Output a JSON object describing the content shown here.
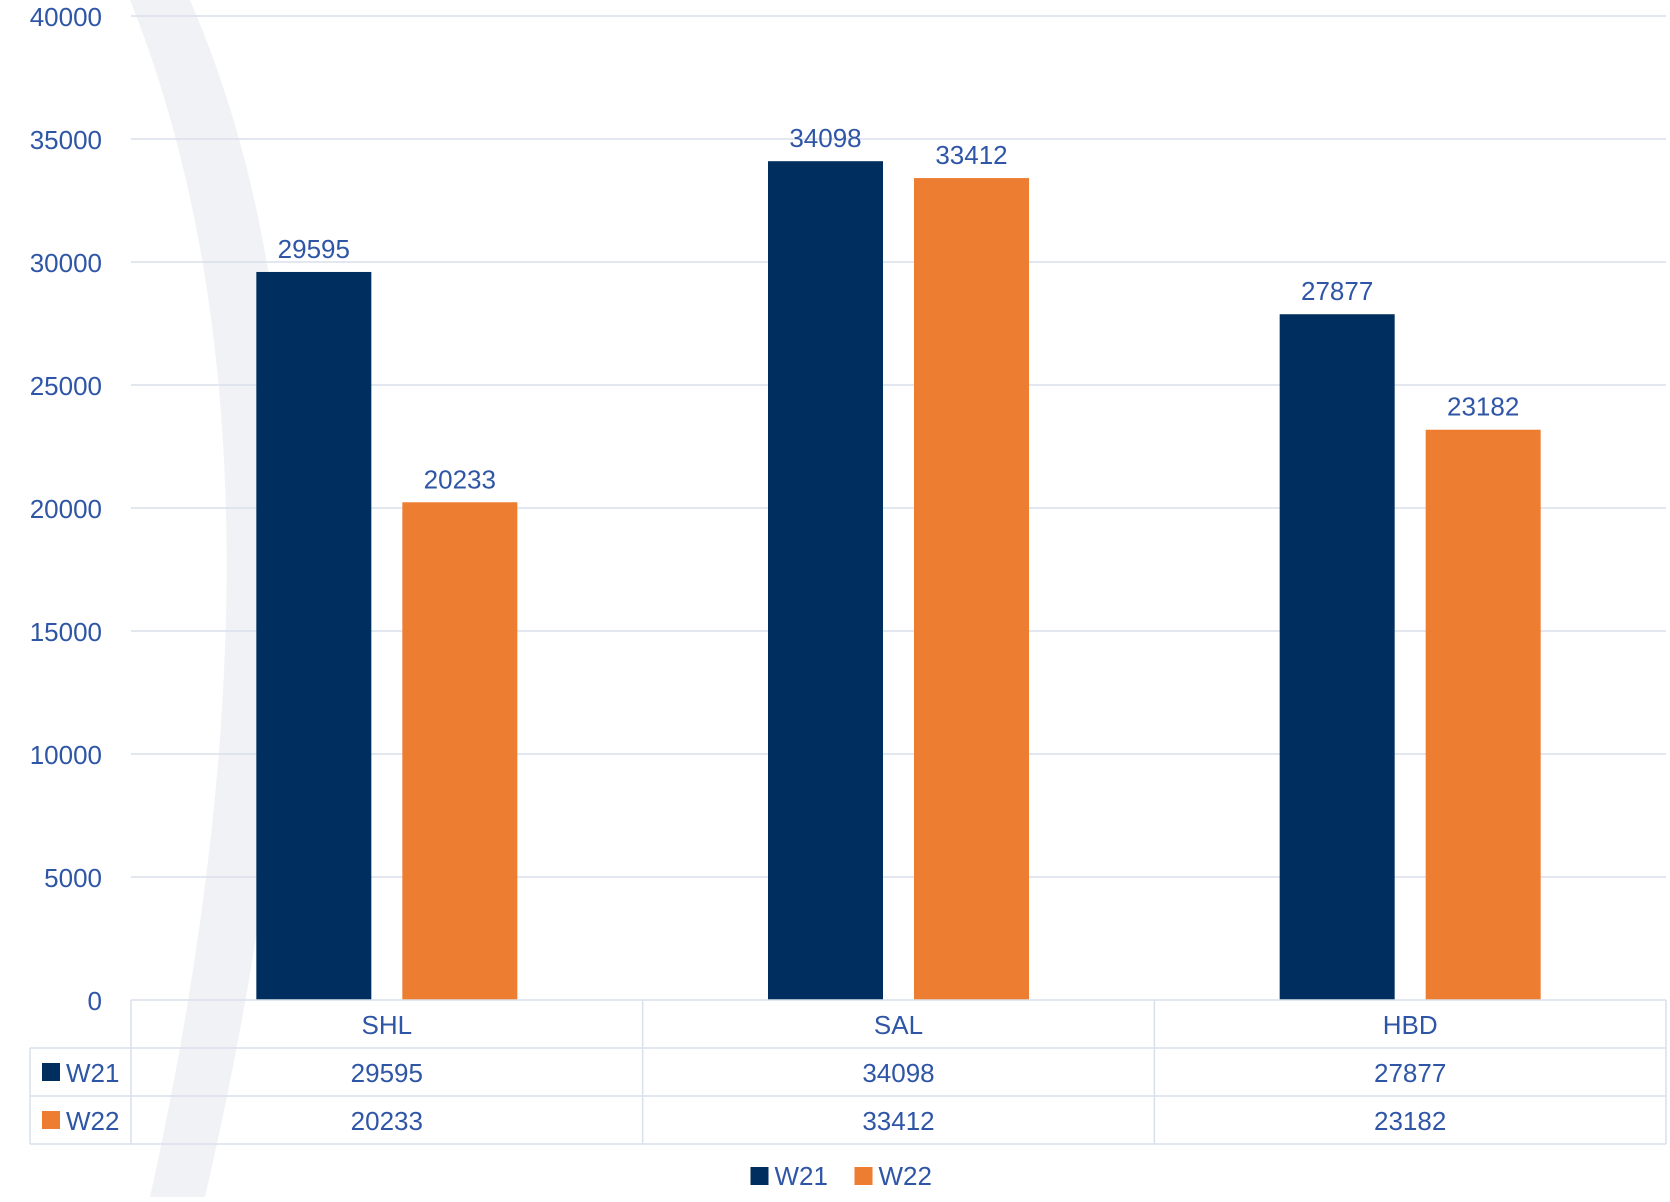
{
  "chart_data": {
    "type": "bar",
    "title": "",
    "xlabel": "",
    "ylabel": "",
    "categories": [
      "SHL",
      "SAL",
      "HBD"
    ],
    "series": [
      {
        "name": "W21",
        "values": [
          29595,
          34098,
          27877
        ]
      },
      {
        "name": "W22",
        "values": [
          20233,
          33412,
          23182
        ]
      }
    ],
    "ylim": [
      0,
      40000
    ],
    "yticks": [
      0,
      5000,
      10000,
      15000,
      20000,
      25000,
      30000,
      35000,
      40000
    ],
    "data_labels": true,
    "grid": true,
    "data_table": true,
    "legend_position": "bottom"
  },
  "colors": {
    "series": [
      "#002f5f",
      "#ed7d31"
    ],
    "label_text": "#2f56a6",
    "grid": "#d9dfeb",
    "background_swoosh": "#f1f2f5"
  }
}
